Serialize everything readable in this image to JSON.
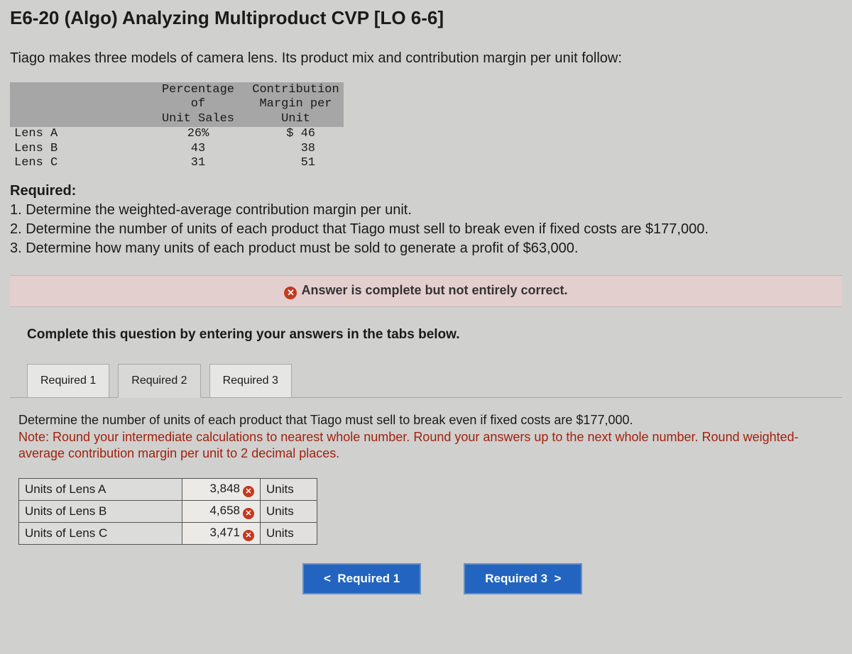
{
  "title": "E6-20 (Algo) Analyzing Multiproduct CVP [LO 6-6]",
  "intro": "Tiago makes three models of camera lens. Its product mix and contribution margin per unit follow:",
  "data_table": {
    "headers": {
      "col1": "Percentage of\nUnit Sales",
      "col2": "Contribution\nMargin per\nUnit"
    },
    "rows": [
      {
        "label": "Lens A",
        "pct": "26%",
        "cm": "$ 46"
      },
      {
        "label": "Lens B",
        "pct": "43",
        "cm": "38"
      },
      {
        "label": "Lens C",
        "pct": "31",
        "cm": "51"
      }
    ]
  },
  "required_label": "Required:",
  "requirements": [
    "1. Determine the weighted-average contribution margin per unit.",
    "2. Determine the number of units of each product that Tiago must sell to break even if fixed costs are $177,000.",
    "3. Determine how many units of each product must be sold to generate a profit of $63,000."
  ],
  "feedback": "Answer is complete but not entirely correct.",
  "instruction": "Complete this question by entering your answers in the tabs below.",
  "tabs": {
    "t1": "Required 1",
    "t2": "Required 2",
    "t3": "Required 3"
  },
  "active_tab": 1,
  "question": {
    "text": "Determine the number of units of each product that Tiago must sell to break even if fixed costs are $177,000.",
    "note": "Note: Round your intermediate calculations to nearest whole number. Round your answers up to the next whole number. Round weighted-average contribution margin per unit to 2 decimal places."
  },
  "answers": [
    {
      "label": "Units of Lens A",
      "value": "3,848",
      "unit": "Units",
      "correct": false
    },
    {
      "label": "Units of Lens B",
      "value": "4,658",
      "unit": "Units",
      "correct": false
    },
    {
      "label": "Units of Lens C",
      "value": "3,471",
      "unit": "Units",
      "correct": false
    }
  ],
  "nav": {
    "prev": "Required 1",
    "next": "Required 3"
  },
  "colors": {
    "bg": "#d0d0ce",
    "header_cell": "#a6a6a6",
    "feedback_bg": "#e4cfcf",
    "error_red": "#c4391f",
    "note_red": "#a02210",
    "nav_blue": "#2264c0"
  }
}
